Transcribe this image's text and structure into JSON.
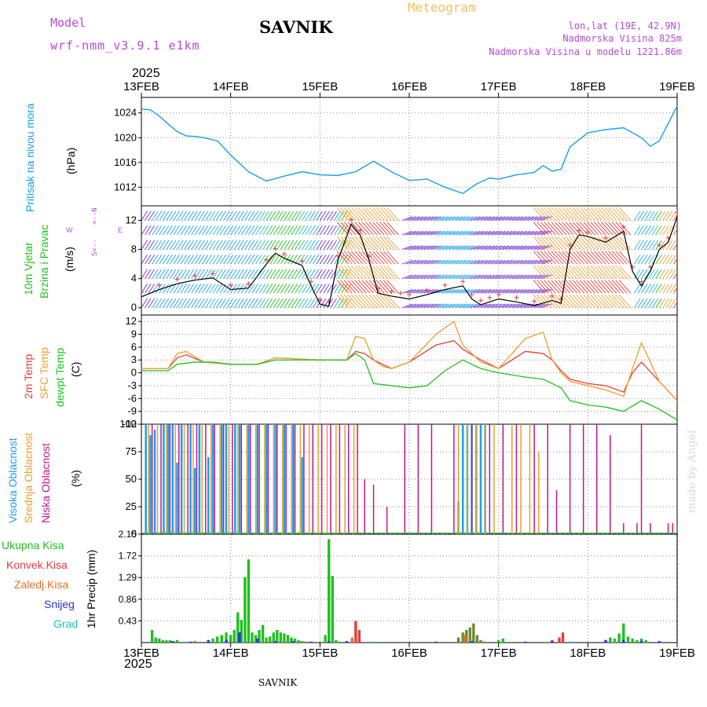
{
  "header": {
    "model_label": "Model",
    "run_label": "wrf-nmm_v3.9.1 e1km",
    "location": "SAVNIK",
    "meteogram": "Meteogram",
    "lonlat": "lon,lat (19E, 42.9N)",
    "elevation": "Nadmorska Visina 825m",
    "model_elevation": "Nadmorska Visina u modelu 1221.86m",
    "year_top": "2025",
    "year_bottom": "2025",
    "footer_location": "SAVNIK",
    "credit": "made by Angel"
  },
  "axis_dates": [
    "13FEB",
    "14FEB",
    "15FEB",
    "16FEB",
    "17FEB",
    "18FEB",
    "19FEB"
  ],
  "panel_labels": {
    "pressure": {
      "title": "Pritisak na nivou mora",
      "unit": "(hPa)"
    },
    "wind": {
      "title1": "10m Vjetar",
      "title2": "Brzina i Pravac",
      "unit": "(m/s)",
      "compass_ns": "<--N",
      "compass_sn": "S<--",
      "compass_w": "W",
      "compass_e": "E"
    },
    "temp": {
      "t2m": "2m Temp",
      "sfc": "SFC Temp",
      "dew": "dewpt Temp",
      "unit": "(C)"
    },
    "cloud": {
      "high": "Visoka Oblacnost",
      "mid": "Srednja Oblacnost",
      "low": "Niska Oblacnost",
      "unit": "(%)"
    },
    "precip": {
      "total": "Ukupna Kisa",
      "conv": "Konvek.Kisa",
      "frz": "Zaledj.Kisa",
      "snow": "Snijeg",
      "hail": "Grad",
      "ylabel": "1hr Precip (mm)"
    }
  },
  "colors": {
    "pressure": "#1aa0e8",
    "t2m": "#e83c3c",
    "sfc": "#e8a030",
    "dew": "#20c020",
    "high_cloud": "#1aa0e8",
    "mid_cloud": "#e8a030",
    "low_cloud": "#c01890",
    "total_rain": "#20c020",
    "conv_rain": "#e83c3c",
    "frz_rain": "#e87020",
    "snow": "#3030e0",
    "hail": "#20c0c0",
    "speed_line": "#000000",
    "gust_marker": "#e83c3c",
    "wind_title": "#20c020",
    "compass": "#b44ad8"
  },
  "chart_data": [
    {
      "type": "line",
      "name": "pressure",
      "x_unit": "days since 13FEB 00UTC",
      "ylabel": "(hPa)",
      "ylim": [
        1009,
        1026.5
      ],
      "yticks": [
        1012,
        1016,
        1020,
        1024
      ],
      "grid": true,
      "series": [
        {
          "name": "Pritisak na nivou mora",
          "x": [
            0.0,
            0.1,
            0.2,
            0.3,
            0.4,
            0.5,
            0.6,
            0.7,
            0.85,
            1.0,
            1.2,
            1.4,
            1.6,
            1.8,
            2.0,
            2.2,
            2.4,
            2.6,
            2.8,
            3.0,
            3.2,
            3.4,
            3.6,
            3.75,
            3.9,
            4.0,
            4.2,
            4.4,
            4.5,
            4.6,
            4.7,
            4.8,
            5.0,
            5.2,
            5.4,
            5.6,
            5.7,
            5.8,
            6.0
          ],
          "y": [
            1024.6,
            1024.5,
            1023.5,
            1022.2,
            1021,
            1020.3,
            1020.2,
            1020,
            1019.5,
            1017.2,
            1014.5,
            1013,
            1013.8,
            1014.5,
            1014,
            1013.9,
            1014.5,
            1016.2,
            1014.5,
            1013.1,
            1013.3,
            1012,
            1011,
            1012.5,
            1013.5,
            1013.3,
            1014,
            1014.4,
            1015.5,
            1014.6,
            1014.9,
            1018.5,
            1020.8,
            1021.3,
            1021.6,
            1020,
            1018.6,
            1019.5,
            1025.1
          ]
        }
      ]
    },
    {
      "type": "line",
      "name": "wind",
      "ylabel": "(m/s)",
      "ylim": [
        -1,
        14
      ],
      "yticks": [
        0,
        4,
        8,
        12
      ],
      "grid": true,
      "series": [
        {
          "name": "10m wind speed",
          "x": [
            0.0,
            0.2,
            0.4,
            0.6,
            0.8,
            1.0,
            1.2,
            1.4,
            1.5,
            1.6,
            1.8,
            1.9,
            2.0,
            2.1,
            2.2,
            2.35,
            2.45,
            2.55,
            2.65,
            2.8,
            2.9,
            3.0,
            3.2,
            3.4,
            3.6,
            3.7,
            3.8,
            3.9,
            4.0,
            4.2,
            4.4,
            4.6,
            4.7,
            4.8,
            4.9,
            5.0,
            5.2,
            5.4,
            5.5,
            5.6,
            5.7,
            5.8,
            5.9,
            6.0
          ],
          "y": [
            1.5,
            2.5,
            3.3,
            3.8,
            4.1,
            2.5,
            2.7,
            6.0,
            7.5,
            6.8,
            5.8,
            3.0,
            0.5,
            0.2,
            6.5,
            11.5,
            10.0,
            6.5,
            2.0,
            1.6,
            1.4,
            1.2,
            1.8,
            2.5,
            3.0,
            1.2,
            0.4,
            0.8,
            1.2,
            0.8,
            0.3,
            1.0,
            0.6,
            8.0,
            10.0,
            9.8,
            9.0,
            10.5,
            5.0,
            3.0,
            5.0,
            8.0,
            9.0,
            12.5
          ]
        }
      ]
    },
    {
      "type": "line",
      "name": "temperature",
      "ylabel": "(C)",
      "ylim": [
        -12,
        13.5
      ],
      "yticks": [
        -12,
        -9,
        -6,
        -3,
        0,
        3,
        6,
        9,
        12
      ],
      "grid": true,
      "series": [
        {
          "name": "2m Temp",
          "x": [
            0.0,
            0.3,
            0.4,
            0.5,
            0.7,
            1.0,
            1.3,
            1.5,
            2.0,
            2.3,
            2.4,
            2.5,
            2.6,
            2.7,
            2.8,
            3.0,
            3.3,
            3.5,
            3.6,
            3.8,
            4.0,
            4.3,
            4.5,
            4.6,
            4.7,
            4.8,
            5.0,
            5.2,
            5.4,
            5.5,
            5.6,
            5.8,
            6.0
          ],
          "y": [
            1,
            1,
            3.5,
            4.2,
            2.5,
            2,
            2,
            3.5,
            3,
            3,
            5,
            4.5,
            3,
            2,
            1,
            2.5,
            6.5,
            7.5,
            5.5,
            3,
            1,
            5,
            4.5,
            3,
            0.5,
            -1.5,
            -2.5,
            -3,
            -4.5,
            0,
            2.5,
            -2,
            -6.5
          ]
        },
        {
          "name": "SFC Temp",
          "x": [
            0.0,
            0.3,
            0.4,
            0.5,
            0.7,
            1.0,
            1.3,
            1.5,
            2.0,
            2.3,
            2.4,
            2.5,
            2.6,
            2.7,
            2.8,
            3.0,
            3.3,
            3.5,
            3.6,
            3.8,
            4.0,
            4.3,
            4.5,
            4.6,
            4.7,
            4.8,
            5.0,
            5.2,
            5.4,
            5.5,
            5.6,
            5.8,
            6.0
          ],
          "y": [
            1,
            1,
            4.5,
            5,
            2.5,
            2,
            2,
            3.5,
            3,
            3,
            8.5,
            8,
            3,
            1.5,
            1,
            2.5,
            9,
            12,
            6.5,
            2.5,
            1,
            8,
            9.5,
            3,
            0,
            -2,
            -3,
            -4,
            -5.5,
            1,
            7,
            -2,
            -6.5
          ]
        },
        {
          "name": "dewpt Temp",
          "x": [
            0.0,
            0.3,
            0.4,
            0.6,
            0.8,
            1.0,
            1.3,
            1.5,
            2.0,
            2.3,
            2.4,
            2.5,
            2.6,
            2.8,
            3.0,
            3.2,
            3.4,
            3.6,
            3.8,
            4.0,
            4.3,
            4.5,
            4.6,
            4.7,
            4.8,
            5.0,
            5.2,
            5.4,
            5.6,
            5.8,
            6.0
          ],
          "y": [
            0.5,
            0.5,
            2,
            2.5,
            2.5,
            2,
            2,
            3,
            3,
            3,
            4.5,
            3,
            -2.5,
            -3,
            -3.5,
            -3,
            0.5,
            3,
            1,
            0,
            -1,
            -1.5,
            -2.5,
            -3.5,
            -6.5,
            -7.5,
            -8,
            -9,
            -6.5,
            -8.5,
            -11
          ]
        }
      ]
    },
    {
      "type": "bar",
      "name": "cloud_cover",
      "ylabel": "(%)",
      "ylim": [
        0,
        100
      ],
      "yticks": [
        0,
        25,
        50,
        75,
        100
      ],
      "grid": true,
      "series": [
        {
          "name": "Visoka Oblacnost",
          "x": [
            0.05,
            0.1,
            0.15,
            0.25,
            0.3,
            0.35,
            0.4,
            0.45,
            0.55,
            0.6,
            0.65,
            0.75,
            0.8,
            0.9,
            0.95,
            1.05,
            1.1,
            1.2,
            1.3,
            1.4,
            1.5,
            1.6,
            1.7,
            1.8,
            3.55,
            3.6,
            3.65,
            3.7,
            3.75,
            3.8,
            3.85
          ],
          "y": [
            100,
            90,
            95,
            100,
            100,
            100,
            65,
            100,
            100,
            60,
            100,
            70,
            100,
            100,
            100,
            100,
            100,
            100,
            100,
            100,
            100,
            100,
            100,
            70,
            30,
            100,
            100,
            100,
            100,
            100,
            100
          ]
        },
        {
          "name": "Srednja Oblacnost",
          "x": [
            0.08,
            0.18,
            0.28,
            0.38,
            0.48,
            0.58,
            0.68,
            0.78,
            0.88,
            0.98,
            1.08,
            1.18,
            1.28,
            1.38,
            1.48,
            1.58,
            1.68,
            1.78,
            1.88,
            1.98,
            2.08,
            2.18,
            2.28,
            2.38,
            3.55,
            3.65,
            3.75,
            3.85,
            3.95,
            4.05,
            4.15,
            4.25,
            4.35,
            4.45
          ],
          "y": [
            100,
            100,
            100,
            100,
            100,
            100,
            100,
            100,
            100,
            100,
            100,
            100,
            100,
            100,
            100,
            100,
            100,
            100,
            100,
            100,
            100,
            100,
            100,
            100,
            100,
            100,
            100,
            100,
            100,
            100,
            100,
            100,
            100,
            75
          ]
        },
        {
          "name": "Niska Oblacnost",
          "x": [
            0.12,
            0.22,
            0.32,
            0.42,
            0.52,
            0.62,
            0.72,
            0.82,
            0.92,
            1.02,
            1.12,
            1.22,
            1.32,
            1.42,
            1.52,
            1.62,
            1.72,
            1.82,
            1.92,
            2.02,
            2.12,
            2.22,
            2.32,
            2.42,
            2.5,
            2.6,
            2.75,
            2.95,
            3.1,
            3.25,
            3.5,
            3.7,
            3.9,
            4.05,
            4.2,
            4.4,
            4.55,
            4.65,
            4.8,
            4.95,
            5.1,
            5.25,
            5.4,
            5.55,
            5.6,
            5.7,
            5.9,
            5.95
          ],
          "y": [
            100,
            100,
            100,
            100,
            100,
            100,
            100,
            100,
            100,
            100,
            100,
            100,
            100,
            100,
            100,
            100,
            100,
            100,
            100,
            100,
            100,
            100,
            100,
            100,
            50,
            45,
            25,
            100,
            100,
            100,
            100,
            100,
            100,
            100,
            100,
            100,
            100,
            40,
            100,
            100,
            100,
            90,
            10,
            10,
            100,
            10,
            10,
            10
          ]
        }
      ]
    },
    {
      "type": "bar",
      "name": "precipitation",
      "ylabel": "1hr Precip (mm)",
      "ylim": [
        0,
        2.15
      ],
      "yticks": [
        0.43,
        0.86,
        1.29,
        1.72,
        2.15
      ],
      "grid": true,
      "series": [
        {
          "name": "Ukupna Kisa",
          "x": [
            0.12,
            0.16,
            0.2,
            0.24,
            0.28,
            0.32,
            0.36,
            0.4,
            0.6,
            0.8,
            0.85,
            0.9,
            0.95,
            1.0,
            1.04,
            1.08,
            1.12,
            1.16,
            1.2,
            1.24,
            1.28,
            1.32,
            1.36,
            1.4,
            1.44,
            1.48,
            1.52,
            1.56,
            1.6,
            1.64,
            1.68,
            1.72,
            1.76,
            1.8,
            1.84,
            2.06,
            2.1,
            2.14,
            2.18,
            2.22,
            3.55,
            3.6,
            3.64,
            3.68,
            3.72,
            3.76,
            3.8,
            3.84,
            4.0,
            4.05,
            5.2,
            5.25,
            5.3,
            5.35,
            5.4,
            5.45,
            5.5,
            5.55,
            5.6,
            5.65
          ],
          "y": [
            0.25,
            0.1,
            0.08,
            0.05,
            0.05,
            0.05,
            0.02,
            0.05,
            0.03,
            0.08,
            0.12,
            0.15,
            0.2,
            0.15,
            0.25,
            0.6,
            0.45,
            1.3,
            1.65,
            0.2,
            0.15,
            0.25,
            0.35,
            0.1,
            0.12,
            0.2,
            0.25,
            0.2,
            0.18,
            0.15,
            0.1,
            0.08,
            0.05,
            0.03,
            0.02,
            0.15,
            2.05,
            1.32,
            0.05,
            0.02,
            0.1,
            0.2,
            0.25,
            0.3,
            0.38,
            0.15,
            0.05,
            0.02,
            0.05,
            0.08,
            0.05,
            0.1,
            0.08,
            0.18,
            0.38,
            0.12,
            0.08,
            0.05,
            0.08,
            0.05
          ]
        },
        {
          "name": "Konvek.Kisa",
          "x": [
            2.4,
            2.44,
            4.6,
            4.68,
            4.72
          ],
          "y": [
            0.43,
            0.25,
            0.05,
            0.1,
            0.2
          ]
        },
        {
          "name": "Zaledj.Kisa",
          "x": [
            2.36,
            3.62
          ],
          "y": [
            0.1,
            0.15
          ]
        },
        {
          "name": "Snijeg",
          "x": [
            0.35,
            0.55,
            0.75,
            0.95,
            1.1,
            1.3,
            1.5,
            1.7,
            1.9,
            2.1,
            2.3,
            3.3,
            3.7,
            4.3,
            4.6,
            5.2,
            5.4,
            5.6,
            5.8
          ],
          "y": [
            0.03,
            0.02,
            0.05,
            0.05,
            0.2,
            0.08,
            0.03,
            0.03,
            0.02,
            0.03,
            0.03,
            0.02,
            0.03,
            0.02,
            0.03,
            0.05,
            0.05,
            0.03,
            0.03
          ]
        },
        {
          "name": "Grad",
          "x": [
            0.5,
            2.6,
            4.8,
            5.3
          ],
          "y": [
            0.02,
            0.02,
            0.02,
            0.02
          ]
        }
      ]
    }
  ]
}
